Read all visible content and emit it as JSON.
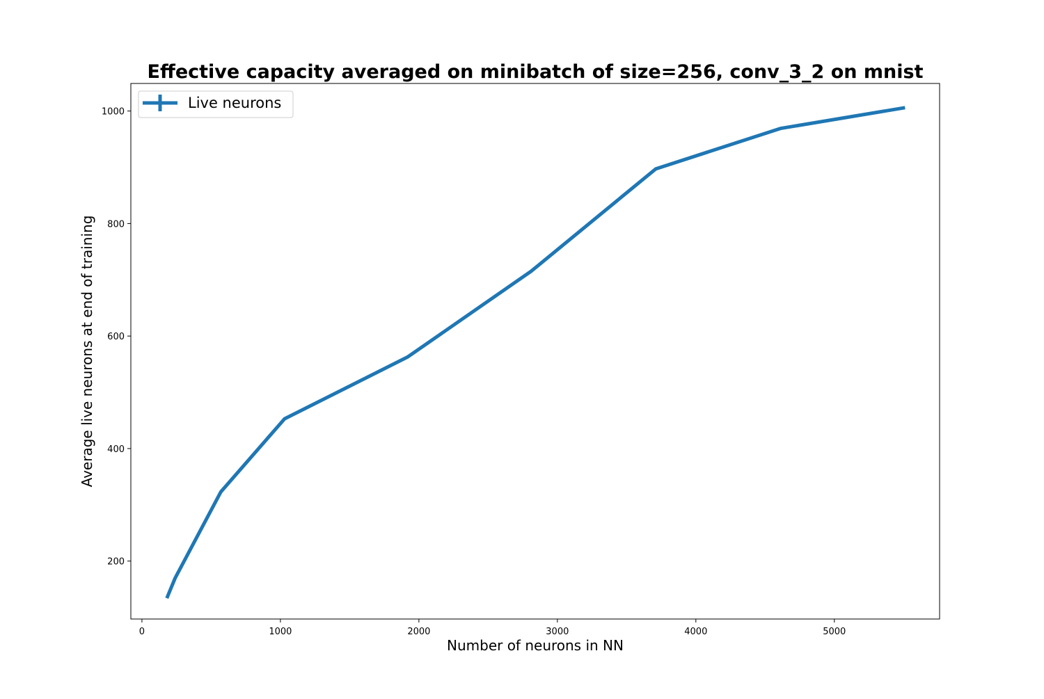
{
  "chart_data": {
    "type": "line",
    "title": "Effective capacity averaged on minibatch of size=256, conv_3_2 on mnist",
    "xlabel": "Number of neurons in NN",
    "ylabel": "Average live neurons at end of training",
    "xlim": [
      -80,
      5760
    ],
    "ylim": [
      97,
      1049
    ],
    "x_ticks": [
      0,
      1000,
      2000,
      3000,
      4000,
      5000
    ],
    "y_ticks": [
      200,
      400,
      600,
      800,
      1000
    ],
    "grid": false,
    "legend_position": "upper-left",
    "series": [
      {
        "name": "Live neurons",
        "color": "#1f77b4",
        "x": [
          180,
          240,
          570,
          1030,
          1920,
          2810,
          3710,
          4610,
          5510
        ],
        "y": [
          134,
          170,
          323,
          453,
          563,
          715,
          897,
          969,
          1006
        ]
      }
    ]
  }
}
